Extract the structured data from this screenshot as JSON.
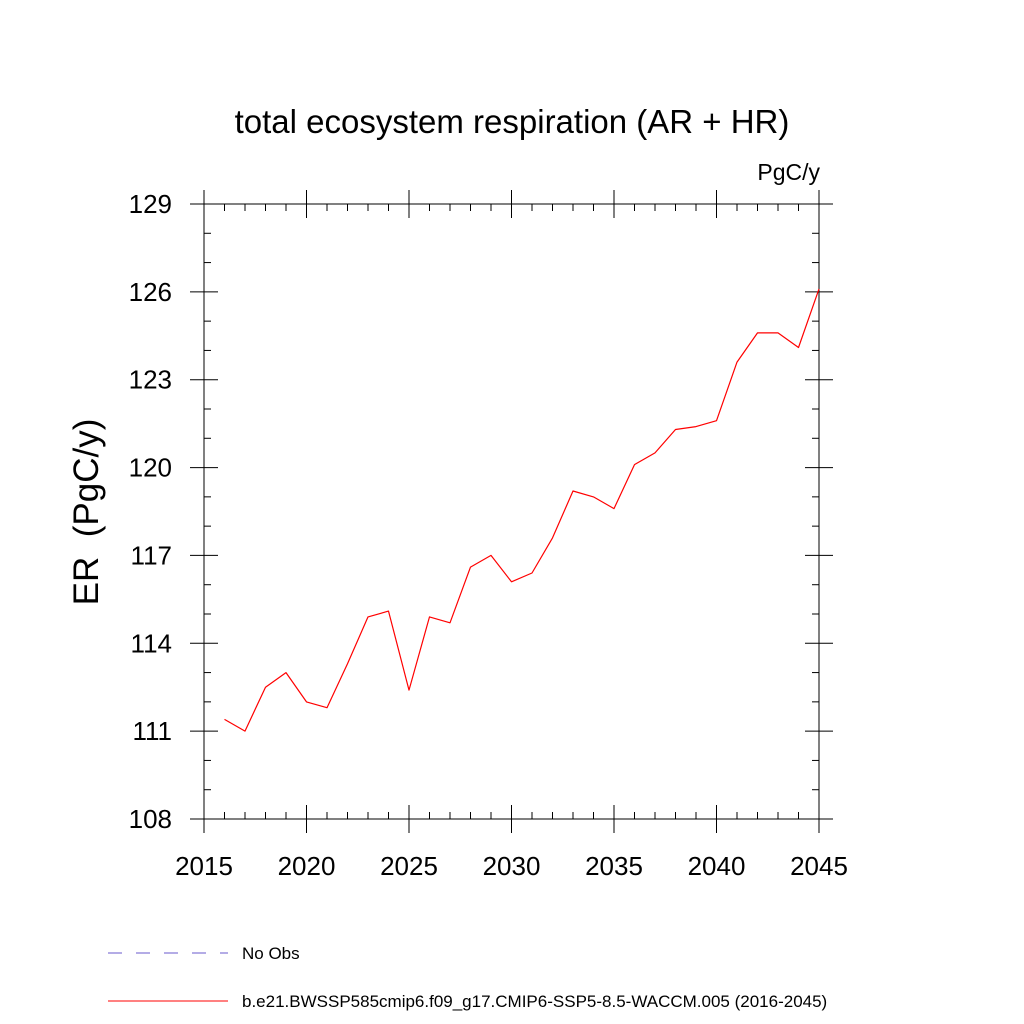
{
  "chart_data": {
    "type": "line",
    "title": "total ecosystem respiration (AR + HR)",
    "units_label": "PgC/y",
    "ylabel": "ER  (PgC/y)",
    "xlabel": "",
    "xlim": [
      2015,
      2045
    ],
    "ylim": [
      108,
      129
    ],
    "x_ticks": [
      2015,
      2020,
      2025,
      2030,
      2035,
      2040,
      2045
    ],
    "y_ticks": [
      108,
      111,
      114,
      117,
      120,
      123,
      126,
      129
    ],
    "x_minor_step": 1,
    "y_minor_step": 1,
    "grid": false,
    "legend_position": "bottom",
    "series": [
      {
        "name": "b.e21.BWSSP585cmip6.f09_g17.CMIP6-SSP5-8.5-WACCM.005 (2016-2045)",
        "color": "#ff0000",
        "style": "solid",
        "x": [
          2016,
          2017,
          2018,
          2019,
          2020,
          2021,
          2022,
          2023,
          2024,
          2025,
          2026,
          2027,
          2028,
          2029,
          2030,
          2031,
          2032,
          2033,
          2034,
          2035,
          2036,
          2037,
          2038,
          2039,
          2040,
          2041,
          2042,
          2043,
          2044,
          2045
        ],
        "values": [
          111.4,
          111.0,
          112.5,
          113.0,
          112.0,
          111.8,
          113.3,
          114.9,
          115.1,
          112.4,
          114.9,
          114.7,
          116.6,
          117.0,
          116.1,
          116.4,
          117.6,
          119.2,
          119.0,
          118.6,
          120.1,
          120.5,
          121.3,
          121.4,
          121.6,
          123.6,
          124.6,
          124.6,
          124.1,
          126.1
        ]
      }
    ],
    "legend": [
      {
        "label": "No Obs",
        "color": "#6a5acd",
        "style": "dashed"
      },
      {
        "label": "b.e21.BWSSP585cmip6.f09_g17.CMIP6-SSP5-8.5-WACCM.005 (2016-2045)",
        "color": "#ff0000",
        "style": "solid"
      }
    ]
  }
}
